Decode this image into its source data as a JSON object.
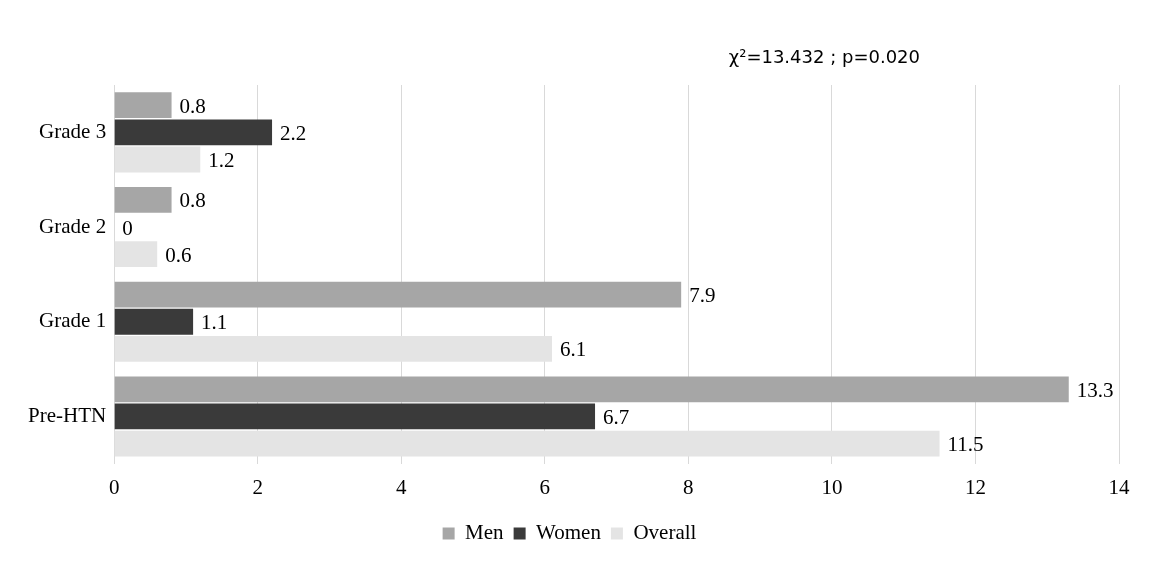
{
  "chart_data": {
    "type": "bar",
    "orientation": "horizontal",
    "categories": [
      "Grade 3",
      "Grade 2",
      "Grade 1",
      "Pre-HTN"
    ],
    "series": [
      {
        "name": "Men",
        "color": "#a6a6a6",
        "values": [
          0.8,
          0.8,
          7.9,
          13.3
        ]
      },
      {
        "name": "Women",
        "color": "#3a3a3a",
        "values": [
          2.2,
          0,
          1.1,
          6.7
        ]
      },
      {
        "name": "Overall",
        "color": "#e4e4e4",
        "values": [
          1.2,
          0.6,
          6.1,
          11.5
        ]
      }
    ],
    "xlim": [
      0,
      14
    ],
    "xticks": [
      0,
      2,
      4,
      6,
      8,
      10,
      12,
      14
    ],
    "grid": "x",
    "legend": "bottom",
    "data_labels": true,
    "annotations": [
      "χ²=13.432 ; p=0.020"
    ]
  }
}
